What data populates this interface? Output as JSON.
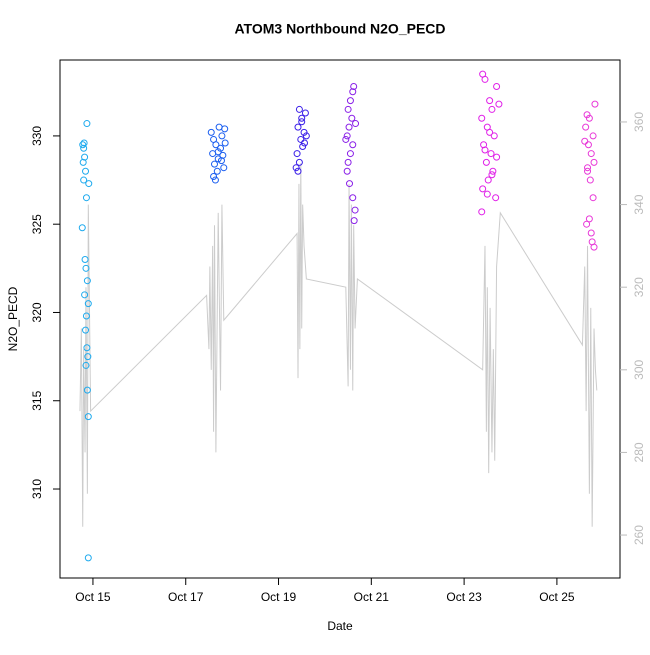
{
  "chart_data": {
    "type": "scatter",
    "title": "ATOM3 Northbound N2O_PECD",
    "x_label": "Date",
    "y_label": "N2O_PECD",
    "xlim": [
      14.29,
      26.36
    ],
    "ylim": [
      304.96,
      334.3
    ],
    "y2lim": [
      249.6,
      375
    ],
    "xticks": [
      {
        "value": 15,
        "label": "Oct 15"
      },
      {
        "value": 17,
        "label": "Oct 17"
      },
      {
        "value": 19,
        "label": "Oct 19"
      },
      {
        "value": 21,
        "label": "Oct 21"
      },
      {
        "value": 23,
        "label": "Oct 23"
      },
      {
        "value": 25,
        "label": "Oct 25"
      }
    ],
    "yticks": [
      310,
      315,
      320,
      325,
      330
    ],
    "y2ticks": [
      260,
      280,
      300,
      320,
      340,
      360
    ],
    "series": [
      {
        "color": "#1eaaee",
        "x": [
          14.78,
          14.8,
          14.82,
          14.79,
          14.84,
          14.8,
          14.86,
          14.77,
          14.83,
          14.85,
          14.88,
          14.82,
          14.9,
          14.86,
          14.84,
          14.87,
          14.89,
          14.85,
          14.88,
          14.9,
          14.9,
          14.87,
          14.81,
          14.91
        ],
        "values": [
          329.5,
          329.3,
          328.8,
          328.5,
          328.0,
          327.5,
          326.5,
          324.8,
          323.0,
          322.5,
          321.8,
          321.0,
          320.5,
          319.8,
          319.0,
          318.0,
          317.5,
          317.0,
          315.6,
          314.1,
          306.1,
          330.7,
          329.6,
          327.3
        ]
      },
      {
        "color": "#1a5ef0",
        "x": [
          17.55,
          17.6,
          17.65,
          17.58,
          17.7,
          17.62,
          17.68,
          17.6,
          17.64,
          17.72,
          17.78,
          17.75,
          17.8,
          17.82,
          17.85,
          17.84,
          17.77,
          17.7
        ],
        "values": [
          330.2,
          329.8,
          329.5,
          329.0,
          328.7,
          328.4,
          328.0,
          327.7,
          327.5,
          330.5,
          330.0,
          329.3,
          328.9,
          328.2,
          329.6,
          330.4,
          328.6,
          329.1
        ]
      },
      {
        "color": "#3a1ee8",
        "x": [
          19.45,
          19.5,
          19.42,
          19.55,
          19.48,
          19.52,
          19.4,
          19.45,
          19.38,
          19.42,
          19.58,
          19.5,
          19.56,
          19.6
        ],
        "values": [
          331.5,
          331.0,
          330.5,
          330.2,
          329.8,
          329.4,
          329.0,
          328.5,
          328.2,
          328.0,
          331.3,
          330.8,
          329.6,
          330.0
        ]
      },
      {
        "color": "#8a20e8",
        "x": [
          20.62,
          20.6,
          20.55,
          20.5,
          20.58,
          20.52,
          20.48,
          20.6,
          20.55,
          20.5,
          20.48,
          20.53,
          20.6,
          20.65,
          20.63,
          20.66,
          20.45
        ],
        "values": [
          332.8,
          332.5,
          332.0,
          331.5,
          331.0,
          330.5,
          330.0,
          329.5,
          329.0,
          328.5,
          328.0,
          327.3,
          326.5,
          325.8,
          325.2,
          330.7,
          329.8
        ]
      },
      {
        "color": "#e020e8",
        "x": [
          23.4,
          23.45,
          23.7,
          23.55,
          23.6,
          23.38,
          23.5,
          23.65,
          23.42,
          23.58,
          23.48,
          23.62,
          23.52,
          23.4,
          23.68,
          23.38,
          23.75,
          23.55,
          23.45,
          23.7,
          23.6,
          23.5
        ],
        "values": [
          333.5,
          333.2,
          332.8,
          332.0,
          331.5,
          331.0,
          330.5,
          330.0,
          329.5,
          329.0,
          328.5,
          328.0,
          327.5,
          327.0,
          326.5,
          325.7,
          331.8,
          330.2,
          329.2,
          328.8,
          327.8,
          326.7
        ]
      },
      {
        "color": "#e838d8",
        "x": [
          25.65,
          25.7,
          25.62,
          25.78,
          25.68,
          25.74,
          25.8,
          25.66,
          25.72,
          25.78,
          25.7,
          25.74,
          25.76,
          25.8,
          25.82,
          25.6,
          25.66,
          25.64
        ],
        "values": [
          331.2,
          331.0,
          330.5,
          330.0,
          329.5,
          329.0,
          328.5,
          328.0,
          327.5,
          326.5,
          325.3,
          324.5,
          324.0,
          323.7,
          331.8,
          329.7,
          328.2,
          325.0
        ]
      },
      {
        "color": "#cccccc",
        "axis": "y2",
        "x": [
          14.72,
          14.75,
          14.78,
          14.8,
          14.83,
          14.85,
          14.88,
          14.9,
          14.95,
          17.45,
          17.5,
          17.52,
          17.55,
          17.58,
          17.6,
          17.62,
          17.65,
          17.7,
          17.75,
          17.78,
          17.82,
          19.4,
          19.42,
          19.44,
          19.46,
          19.48,
          19.5,
          19.52,
          19.55,
          19.6,
          20.45,
          20.5,
          20.52,
          20.55,
          20.57,
          20.6,
          20.62,
          20.65,
          20.7,
          23.4,
          23.45,
          23.48,
          23.5,
          23.53,
          23.56,
          23.6,
          23.63,
          23.66,
          23.7,
          23.78,
          25.55,
          25.6,
          25.63,
          25.66,
          25.7,
          25.73,
          25.76,
          25.8,
          25.83,
          25.86
        ],
        "values": [
          290,
          310,
          262,
          305,
          280,
          320,
          270,
          340,
          290,
          318,
          305,
          325,
          300,
          330,
          285,
          335,
          280,
          338,
          295,
          340,
          312,
          333,
          298,
          345,
          305,
          350,
          310,
          340,
          330,
          322,
          320,
          296,
          345,
          300,
          340,
          295,
          335,
          310,
          322,
          300,
          330,
          285,
          320,
          275,
          315,
          280,
          305,
          278,
          325,
          338,
          306,
          325,
          290,
          330,
          270,
          315,
          262,
          310,
          300,
          295
        ]
      }
    ]
  }
}
